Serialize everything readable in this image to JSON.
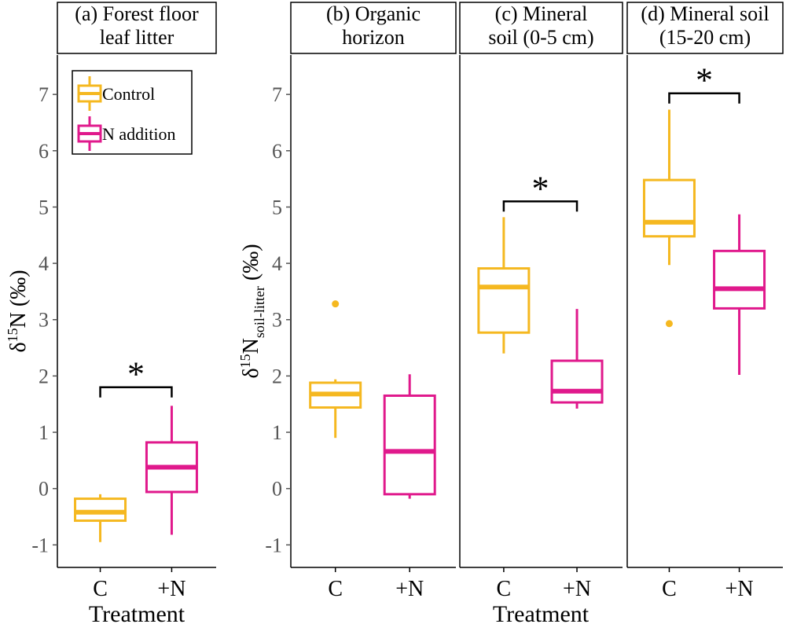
{
  "chart_data": {
    "type": "boxplot",
    "x_label": "Treatment",
    "categories": [
      "C",
      "+N"
    ],
    "colors": {
      "C": "#F5B820",
      "+N": "#E0198C"
    },
    "legend": {
      "position": "top-left",
      "entries": [
        {
          "key": "C",
          "label": "Control"
        },
        {
          "key": "+N",
          "label": "N addition"
        }
      ]
    },
    "panels": [
      {
        "id": "a",
        "title_lines": [
          "(a) Forest floor",
          "leaf litter"
        ],
        "y_label": {
          "base": "δ",
          "sup": "15",
          "main": "N (‰)",
          "sub": ""
        },
        "y_ticks": [
          "-1",
          "0",
          "1",
          "2",
          "3",
          "4",
          "5",
          "6",
          "7"
        ],
        "y_range": [
          -1.4,
          7.7
        ],
        "boxes": {
          "C": {
            "whisker_low": -0.95,
            "q1": -0.57,
            "median": -0.42,
            "q3": -0.18,
            "whisker_high": -0.1,
            "outliers": []
          },
          "+N": {
            "whisker_low": -0.82,
            "q1": -0.06,
            "median": 0.38,
            "q3": 0.82,
            "whisker_high": 1.47,
            "outliers": []
          }
        },
        "significance": {
          "label": "*",
          "level": 1.8
        }
      },
      {
        "id": "b",
        "title_lines": [
          "(b) Organic",
          "horizon"
        ],
        "y_label": {
          "base": "δ",
          "sup": "15",
          "main": "N",
          "sub": "soil-litter",
          "unit": " (‰)"
        },
        "y_ticks": [
          "-1",
          "0",
          "1",
          "2",
          "3",
          "4",
          "5",
          "6",
          "7"
        ],
        "y_range": [
          -1.4,
          7.7
        ],
        "boxes": {
          "C": {
            "whisker_low": 0.9,
            "q1": 1.44,
            "median": 1.68,
            "q3": 1.88,
            "whisker_high": 1.94,
            "outliers": [
              3.28
            ]
          },
          "+N": {
            "whisker_low": -0.18,
            "q1": -0.1,
            "median": 0.66,
            "q3": 1.65,
            "whisker_high": 2.03,
            "outliers": []
          }
        },
        "significance": null
      },
      {
        "id": "c",
        "title_lines": [
          "(c) Mineral",
          "soil (0-5 cm)"
        ],
        "y_label": null,
        "y_ticks": [],
        "y_range": [
          -1.4,
          7.7
        ],
        "boxes": {
          "C": {
            "whisker_low": 2.4,
            "q1": 2.77,
            "median": 3.58,
            "q3": 3.91,
            "whisker_high": 4.82,
            "outliers": []
          },
          "+N": {
            "whisker_low": 1.42,
            "q1": 1.53,
            "median": 1.73,
            "q3": 2.27,
            "whisker_high": 3.19,
            "outliers": []
          }
        },
        "significance": {
          "label": "*",
          "level": 5.1
        }
      },
      {
        "id": "d",
        "title_lines": [
          "(d) Mineral soil",
          "(15-20 cm)"
        ],
        "y_label": null,
        "y_ticks": [],
        "y_range": [
          -1.4,
          7.7
        ],
        "boxes": {
          "C": {
            "whisker_low": 3.97,
            "q1": 4.48,
            "median": 4.73,
            "q3": 5.48,
            "whisker_high": 6.73,
            "outliers": [
              2.93
            ]
          },
          "+N": {
            "whisker_low": 2.02,
            "q1": 3.2,
            "median": 3.55,
            "q3": 4.22,
            "whisker_high": 4.87,
            "outliers": []
          }
        },
        "significance": {
          "label": "*",
          "level": 7.02
        }
      }
    ]
  }
}
